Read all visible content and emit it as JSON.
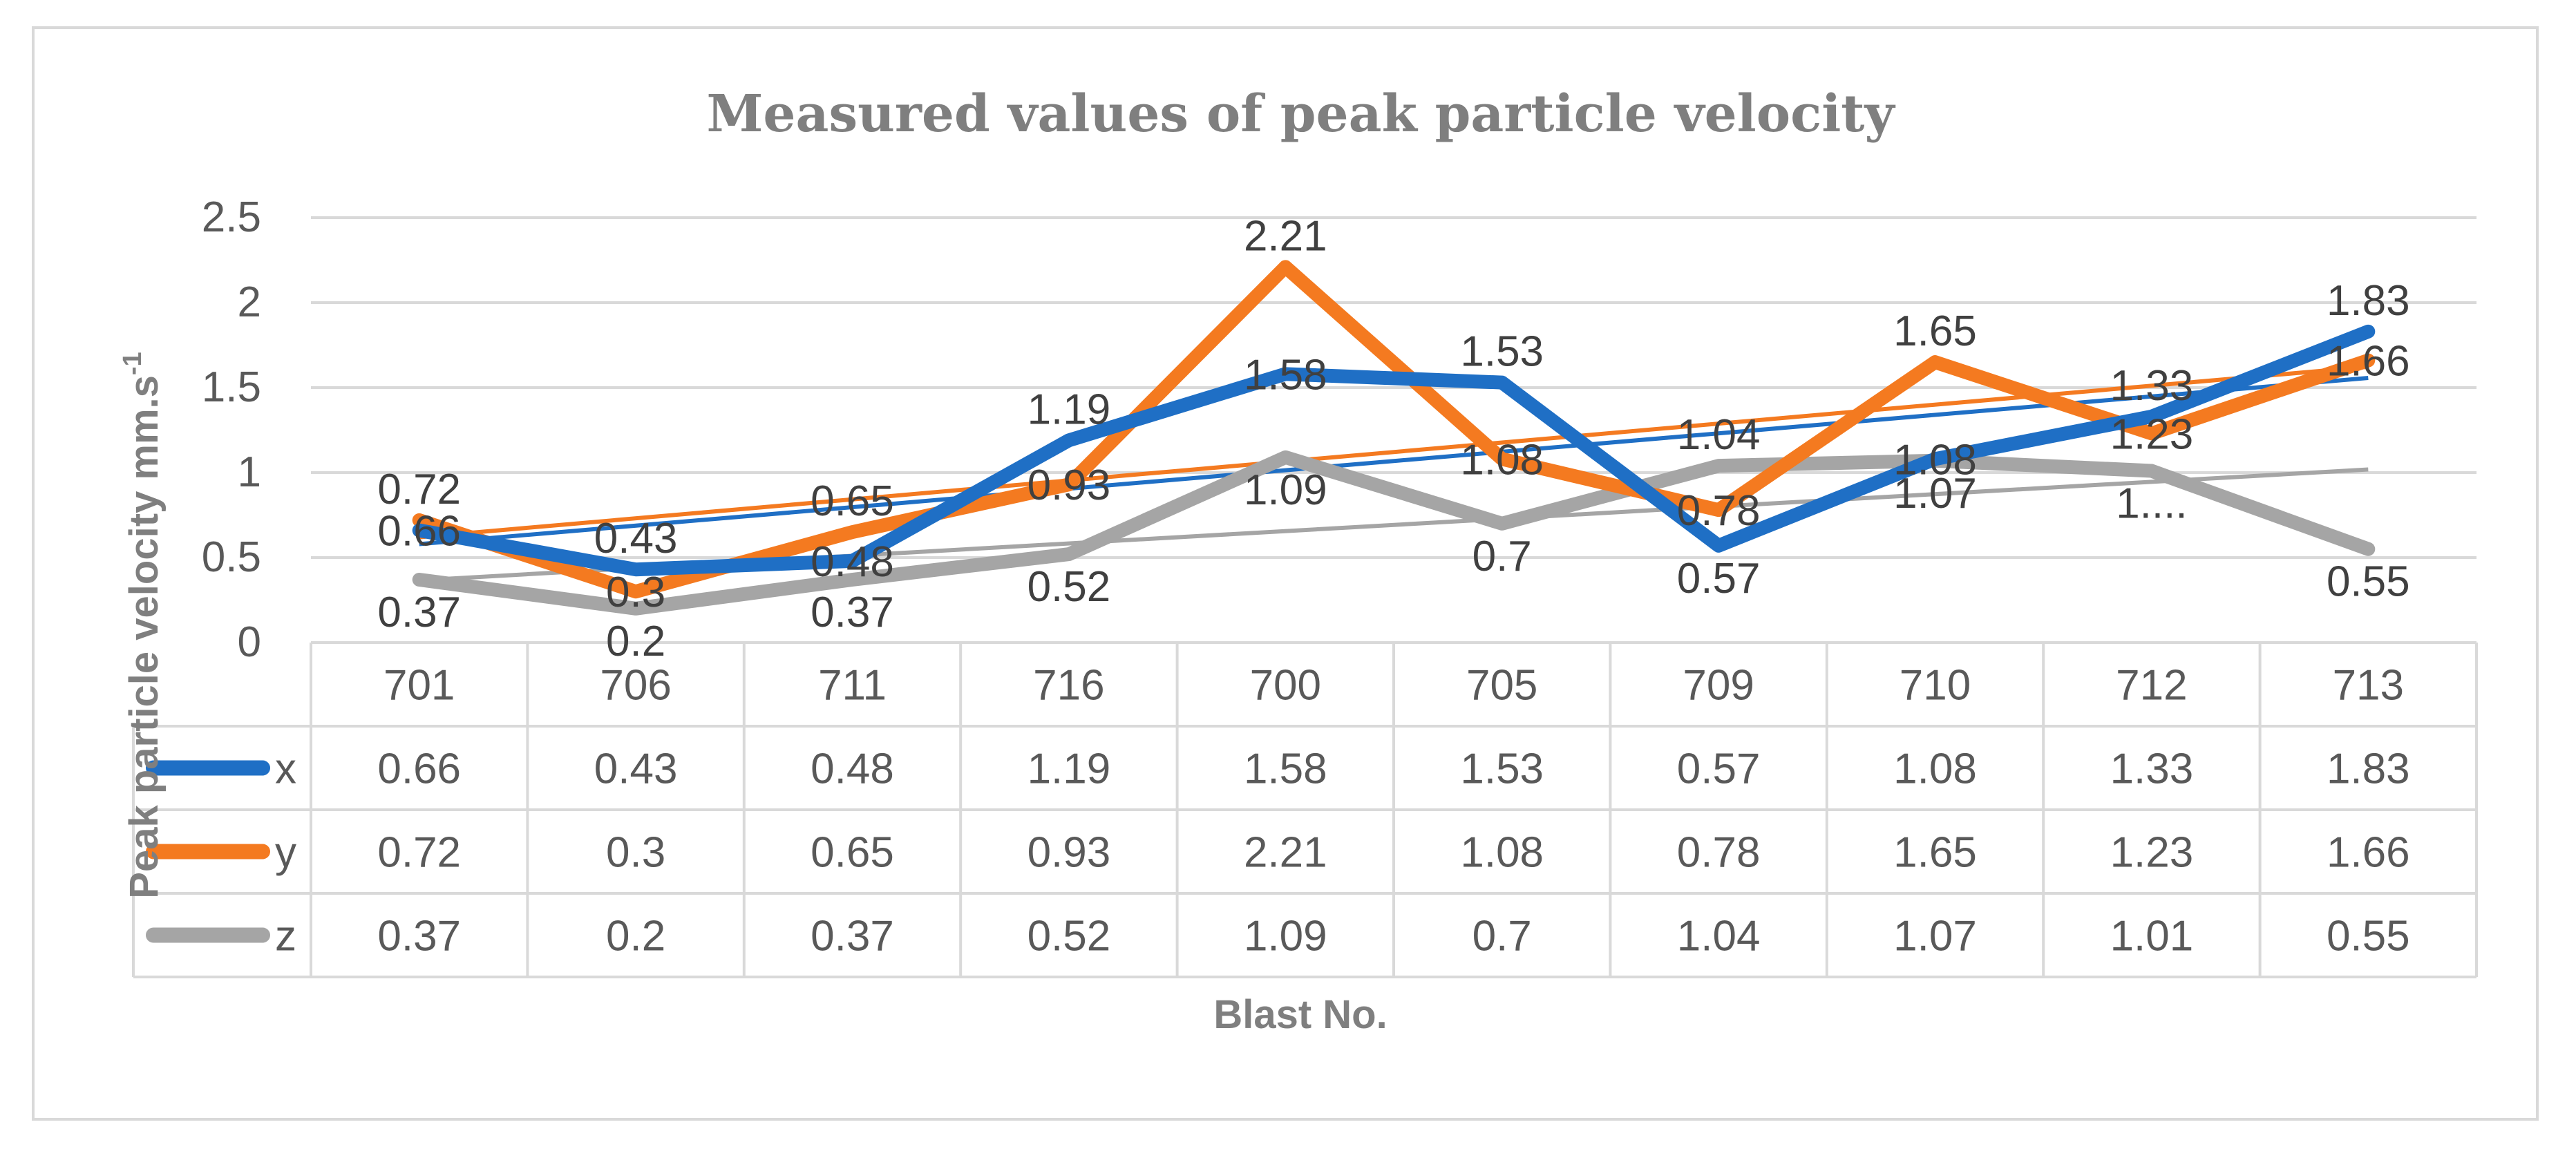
{
  "chart_data": {
    "type": "line",
    "title": "Measured values of peak particle velocity",
    "xlabel": "Blast No.",
    "ylabel": "Peak particle velocity mm.s",
    "ylabel_sup": "-1",
    "categories": [
      "701",
      "706",
      "711",
      "716",
      "700",
      "705",
      "709",
      "710",
      "712",
      "713"
    ],
    "ylim": [
      0,
      2.5
    ],
    "yticks": [
      "0",
      "0.5",
      "1",
      "1.5",
      "2",
      "2.5"
    ],
    "grid": true,
    "legend": "data-table",
    "series": [
      {
        "name": "x",
        "color": "#1f6fc5",
        "values": [
          0.66,
          0.43,
          0.48,
          1.19,
          1.58,
          1.53,
          0.57,
          1.08,
          1.33,
          1.83
        ],
        "labels": [
          "0.66",
          "0.43",
          "0.48",
          "1.19",
          "1.58",
          "1.53",
          "0.57",
          "1.08",
          "1.33",
          "1.83"
        ]
      },
      {
        "name": "y",
        "color": "#f47a20",
        "values": [
          0.72,
          0.3,
          0.65,
          0.93,
          2.21,
          1.08,
          0.78,
          1.65,
          1.23,
          1.66
        ],
        "labels": [
          "0.72",
          "0.3",
          "0.65",
          "0.93",
          "2.21",
          "1.08",
          "0.78",
          "1.65",
          "1.23",
          "1.66"
        ]
      },
      {
        "name": "z",
        "color": "#a5a5a5",
        "values": [
          0.37,
          0.2,
          0.37,
          0.52,
          1.09,
          0.7,
          1.04,
          1.07,
          1.01,
          0.55
        ],
        "labels": [
          "0.37",
          "0.2",
          "0.37",
          "0.52",
          "1.09",
          "0.7",
          "1.04",
          "1.07",
          "1....",
          "0.55"
        ]
      }
    ],
    "table": {
      "rows": [
        {
          "name": "x",
          "cells": [
            "0.66",
            "0.43",
            "0.48",
            "1.19",
            "1.58",
            "1.53",
            "0.57",
            "1.08",
            "1.33",
            "1.83"
          ]
        },
        {
          "name": "y",
          "cells": [
            "0.72",
            "0.3",
            "0.65",
            "0.93",
            "2.21",
            "1.08",
            "0.78",
            "1.65",
            "1.23",
            "1.66"
          ]
        },
        {
          "name": "z",
          "cells": [
            "0.37",
            "0.2",
            "0.37",
            "0.52",
            "1.09",
            "0.7",
            "1.04",
            "1.07",
            "1.01",
            "0.55"
          ]
        }
      ]
    },
    "trendlines": "linear trendline for each series"
  }
}
